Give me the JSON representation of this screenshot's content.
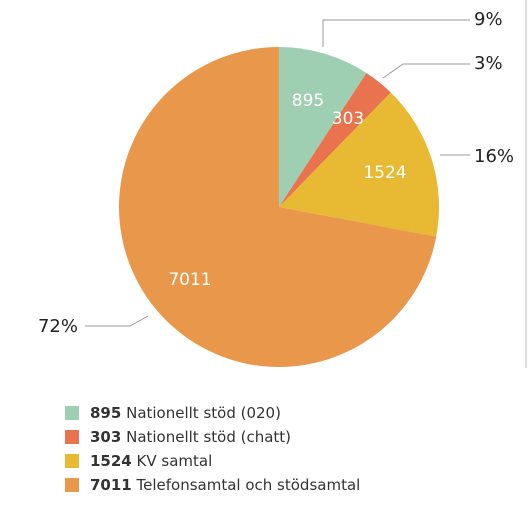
{
  "chart_data": {
    "type": "pie",
    "categories": [
      "Nationellt stöd (020)",
      "Nationellt stöd (chatt)",
      "KV samtal",
      "Telefonsamtal och stödsamtal"
    ],
    "values": [
      895,
      303,
      1524,
      7011
    ],
    "percentages": [
      {
        "value": 9,
        "label": "9%"
      },
      {
        "value": 3,
        "label": "3%"
      },
      {
        "value": 16,
        "label": "16%"
      },
      {
        "value": 72,
        "label": "72%"
      }
    ],
    "colors": [
      "#9fcfb3",
      "#e8734e",
      "#e8b932",
      "#e8974b"
    ]
  }
}
